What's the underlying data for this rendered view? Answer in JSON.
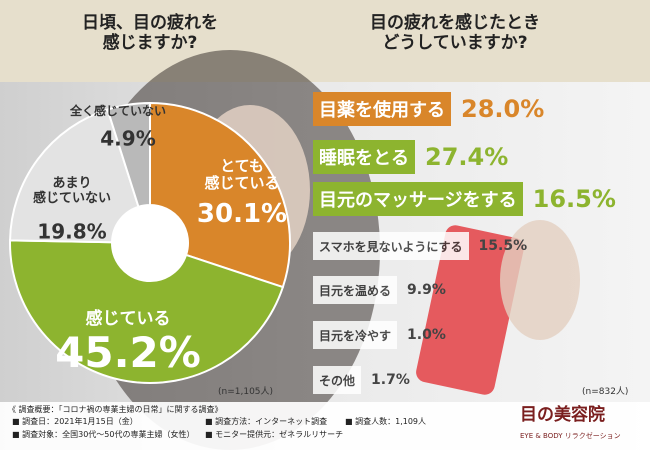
{
  "chart_data": [
    {
      "type": "pie",
      "title": "日頃、目の疲れを\n感じますか?",
      "note": "(n=1,105人)",
      "categories": [
        "とても\n感じている",
        "感じている",
        "あまり\n感じていない",
        "全く感じていない"
      ],
      "values": [
        30.1,
        45.2,
        19.8,
        4.9
      ],
      "value_labels": [
        "30.1%",
        "45.2%",
        "19.8%",
        "4.9%"
      ],
      "colors": [
        "#d9862a",
        "#8db42f",
        "#e3e3e3",
        "#b9b9b9"
      ]
    },
    {
      "type": "bar",
      "title": "目の疲れを感じたとき\nどうしていますか?",
      "note": "(n=832人)",
      "categories": [
        "目薬を使用する",
        "睡眠をとる",
        "目元のマッサージをする",
        "スマホを見ないようにする",
        "目元を温める",
        "目元を冷やす",
        "その他"
      ],
      "values": [
        28.0,
        27.4,
        16.5,
        15.5,
        9.9,
        1.0,
        1.7
      ],
      "value_labels": [
        "28.0%",
        "27.4%",
        "16.5%",
        "15.5%",
        "9.9%",
        "1.0%",
        "1.7%"
      ],
      "colors": [
        "#d9862a",
        "#8db42f",
        "#8db42f",
        "#ffffff",
        "#ffffff",
        "#ffffff",
        "#ffffff"
      ]
    }
  ],
  "footer": {
    "heading": "《 調査概要：「コロナ禍の専業主婦の日常」に関する調査》",
    "items": [
      "■ 調査日：2021年1月15日（金）",
      "■ 調査対象：全国30代〜50代の専業主婦（女性）",
      "■ 調査方法：インターネット調査",
      "■ モニター提供元：ゼネラルリサーチ",
      "■ 調査人数：1,109人"
    ],
    "logo": "目の美容院",
    "logo_sub": "EYE & BODY リラクゼーション"
  }
}
